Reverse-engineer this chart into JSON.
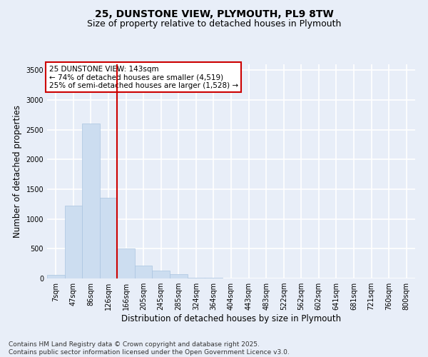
{
  "title_line1": "25, DUNSTONE VIEW, PLYMOUTH, PL9 8TW",
  "title_line2": "Size of property relative to detached houses in Plymouth",
  "xlabel": "Distribution of detached houses by size in Plymouth",
  "ylabel": "Number of detached properties",
  "categories": [
    "7sqm",
    "47sqm",
    "86sqm",
    "126sqm",
    "166sqm",
    "205sqm",
    "245sqm",
    "285sqm",
    "324sqm",
    "364sqm",
    "404sqm",
    "443sqm",
    "483sqm",
    "522sqm",
    "562sqm",
    "602sqm",
    "641sqm",
    "681sqm",
    "721sqm",
    "760sqm",
    "800sqm"
  ],
  "values": [
    55,
    1230,
    2600,
    1360,
    500,
    220,
    130,
    70,
    10,
    10,
    5,
    5,
    3,
    2,
    1,
    1,
    0,
    0,
    0,
    0,
    0
  ],
  "bar_color": "#ccddf0",
  "bar_edgecolor": "#aac4e0",
  "vline_x": 3.5,
  "vline_color": "#cc0000",
  "annotation_text": "25 DUNSTONE VIEW: 143sqm\n← 74% of detached houses are smaller (4,519)\n25% of semi-detached houses are larger (1,528) →",
  "annotation_box_color": "white",
  "annotation_box_edgecolor": "#cc0000",
  "ylim": [
    0,
    3600
  ],
  "yticks": [
    0,
    500,
    1000,
    1500,
    2000,
    2500,
    3000,
    3500
  ],
  "footer_line1": "Contains HM Land Registry data © Crown copyright and database right 2025.",
  "footer_line2": "Contains public sector information licensed under the Open Government Licence v3.0.",
  "background_color": "#e8eef8",
  "plot_background_color": "#e8eef8",
  "grid_color": "#ffffff",
  "title_fontsize": 10,
  "subtitle_fontsize": 9,
  "axis_label_fontsize": 8.5,
  "tick_fontsize": 7,
  "annotation_fontsize": 7.5,
  "footer_fontsize": 6.5
}
